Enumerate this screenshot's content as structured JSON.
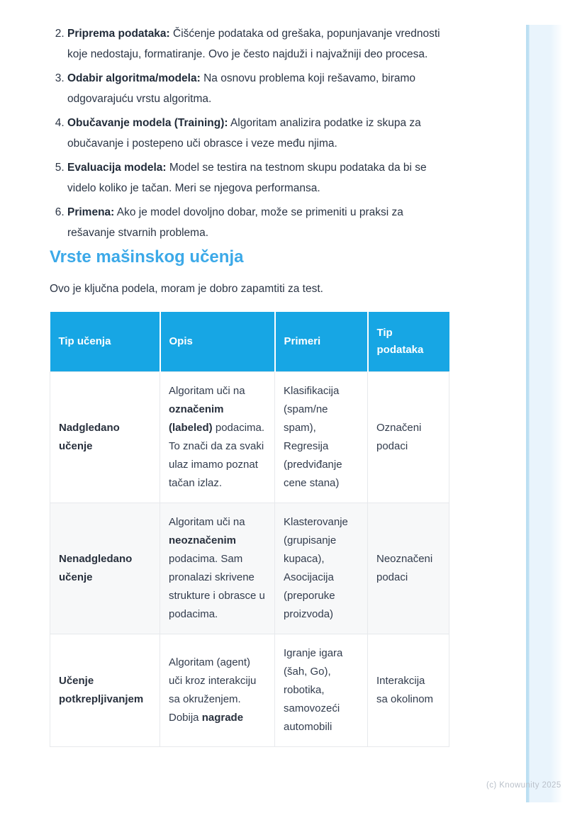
{
  "colors": {
    "heading_blue": "#3ca9e8",
    "table_header_blue": "#17a6e4",
    "body_text": "#2b3545",
    "table_text": "#323c4d",
    "row_alt_bg": "#f7f8f9",
    "cell_border": "#e7e9ec",
    "edge_strip_blue": "#e9f4fc",
    "edge_strip_line": "#bfe1f3",
    "watermark_gray": "#bac1ca"
  },
  "list": {
    "start": 2,
    "items": [
      {
        "label": "Priprema podataka:",
        "text": "Čišćenje podataka od grešaka, popunjavanje vrednosti koje nedostaju, formatiranje. Ovo je često najduži i najvažniji deo procesa."
      },
      {
        "label": "Odabir algoritma/modela:",
        "text": "Na osnovu problema koji rešavamo, biramo odgovarajuću vrstu algoritma."
      },
      {
        "label": "Obučavanje modela (Training):",
        "text": "Algoritam analizira podatke iz skupa za obučavanje i postepeno uči obrasce i veze među njima."
      },
      {
        "label": "Evaluacija modela:",
        "text": "Model se testira na testnom skupu podataka da bi se videlo koliko je tačan. Meri se njegova performansa."
      },
      {
        "label": "Primena:",
        "text": "Ako je model dovoljno dobar, može se primeniti u praksi za rešavanje stvarnih problema."
      }
    ]
  },
  "section": {
    "heading": "Vrste mašinskog učenja",
    "intro": "Ovo je ključna podela, moram je dobro zapamtiti za test."
  },
  "table": {
    "headers": [
      "Tip učenja",
      "Opis",
      "Primeri",
      "Tip podataka"
    ],
    "rows": [
      {
        "cells": [
          [
            {
              "t": "Nadgledano učenje",
              "b": true
            }
          ],
          [
            {
              "t": "Algoritam uči na ",
              "b": false
            },
            {
              "t": "označenim (labeled)",
              "b": true
            },
            {
              "t": " podacima. To znači da za svaki ulaz imamo poznat tačan izlaz.",
              "b": false
            }
          ],
          [
            {
              "t": "Klasifikacija (spam/ne spam), Regresija (predviđanje cene stana)",
              "b": false
            }
          ],
          [
            {
              "t": "Označeni podaci",
              "b": false
            }
          ]
        ]
      },
      {
        "cells": [
          [
            {
              "t": "Nenadgledano učenje",
              "b": true
            }
          ],
          [
            {
              "t": "Algoritam uči na ",
              "b": false
            },
            {
              "t": "neoznačenim",
              "b": true
            },
            {
              "t": " podacima. Sam pronalazi skrivene strukture i obrasce u podacima.",
              "b": false
            }
          ],
          [
            {
              "t": "Klasterovanje (grupisanje kupaca), Asocijacija (preporuke proizvoda)",
              "b": false
            }
          ],
          [
            {
              "t": "Neoznačeni podaci",
              "b": false
            }
          ]
        ]
      },
      {
        "cells": [
          [
            {
              "t": "Učenje potkrepljivanjem",
              "b": true
            }
          ],
          [
            {
              "t": "Algoritam (agent) uči kroz interakciju sa okruženjem. Dobija ",
              "b": false
            },
            {
              "t": "nagrade",
              "b": true
            }
          ],
          [
            {
              "t": "Igranje igara (šah, Go), robotika, samovozeći automobili",
              "b": false
            }
          ],
          [
            {
              "t": "Interakcija sa okolinom",
              "b": false
            }
          ]
        ]
      }
    ]
  },
  "footer": {
    "watermark": "(c) Knowunity 2025"
  }
}
